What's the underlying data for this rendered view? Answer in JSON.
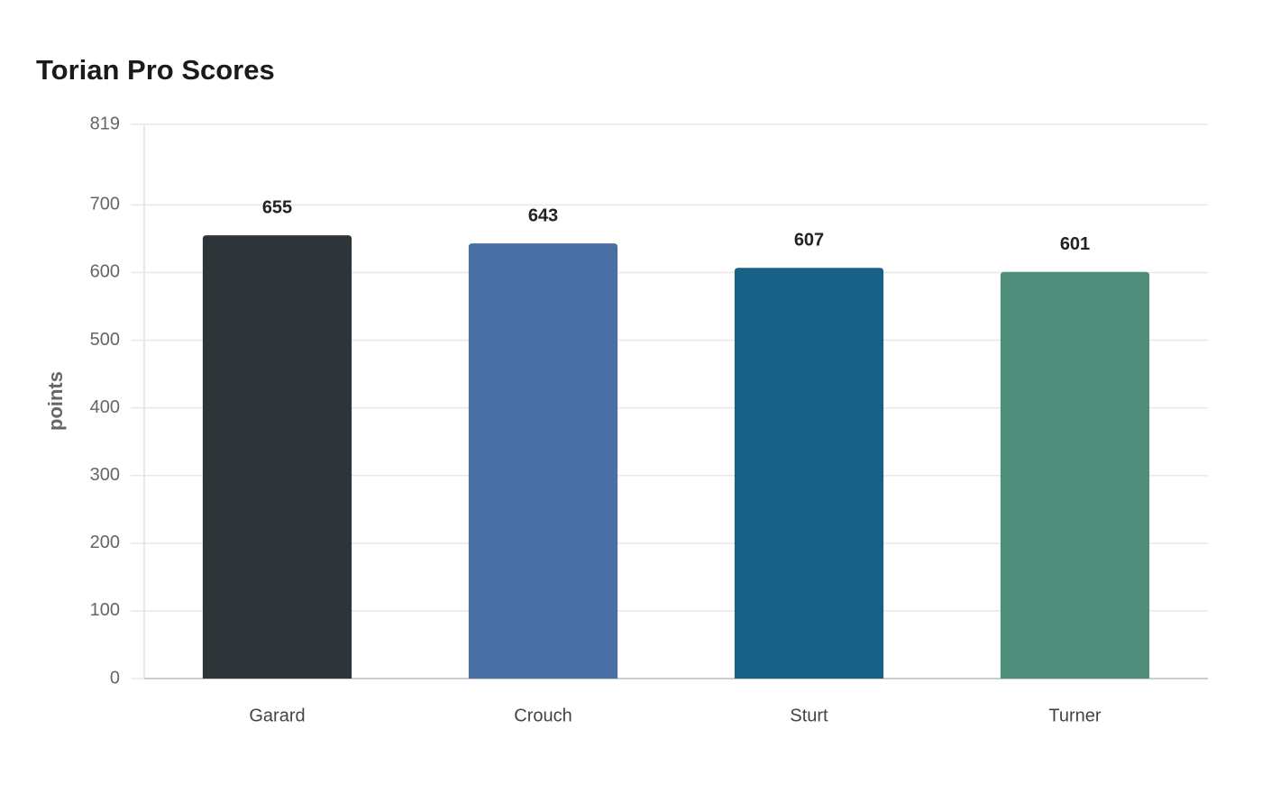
{
  "chart_data": {
    "type": "bar",
    "title": "Torian Pro Scores",
    "y_label": "points",
    "categories": [
      "Garard",
      "Crouch",
      "Sturt",
      "Turner"
    ],
    "values": [
      655,
      643,
      607,
      601
    ],
    "colors": [
      "#2e3538",
      "#4a6fa5",
      "#186186",
      "#4f8e7a"
    ],
    "ylim": [
      0,
      819
    ],
    "yticks": [
      0,
      100,
      200,
      300,
      400,
      500,
      600,
      700,
      819
    ],
    "grid": true
  }
}
